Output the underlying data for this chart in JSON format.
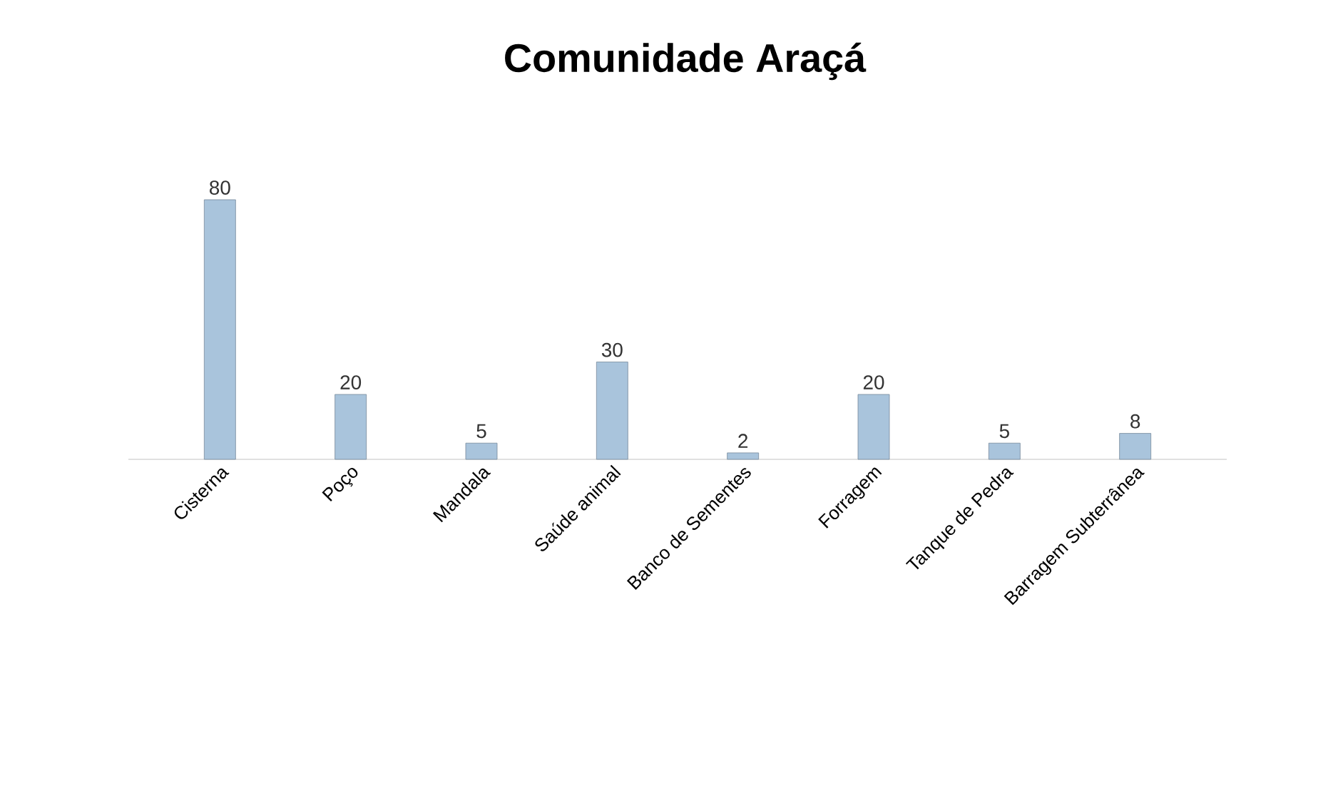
{
  "chart_data": {
    "type": "bar",
    "title": "Comunidade Araçá",
    "categories": [
      "Cisterna",
      "Poço",
      "Mandala",
      "Saúde animal",
      "Banco de Sementes",
      "Forragem",
      "Tanque de Pedra",
      "Barragem Subterrânea"
    ],
    "values": [
      80,
      20,
      5,
      30,
      2,
      20,
      5,
      8
    ],
    "color": "#a9c4dc",
    "data_labels": true
  }
}
